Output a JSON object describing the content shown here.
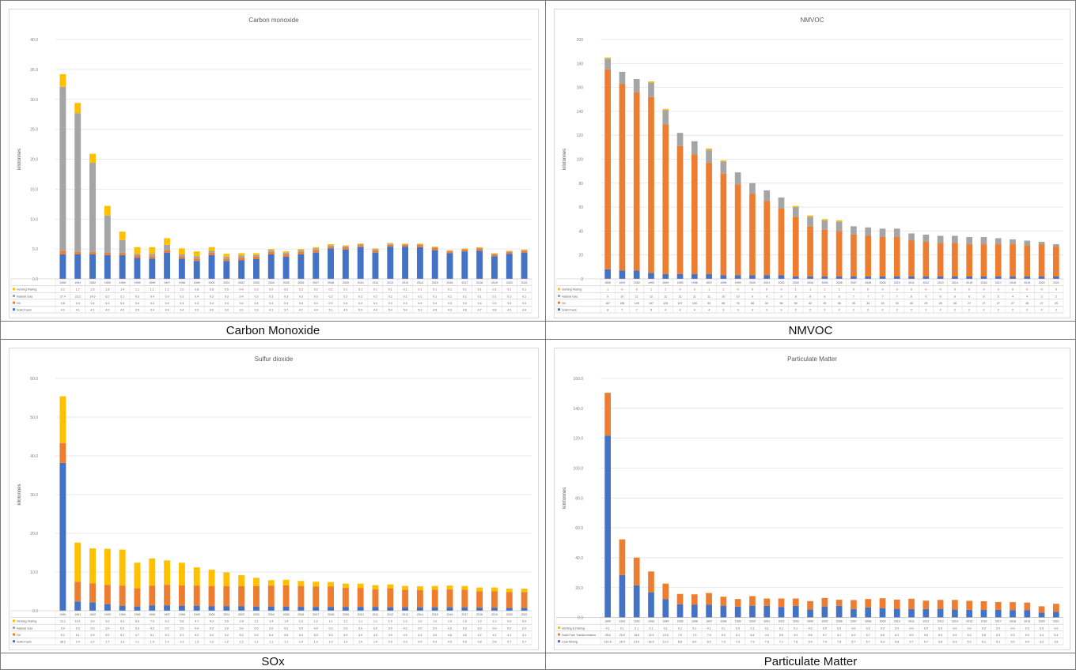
{
  "captions": [
    "Carbon Monoxide",
    "NMVOC",
    "SOx",
    "Particulate Matter"
  ],
  "colors": {
    "blue": "#4472c4",
    "orange": "#ed7d31",
    "gray": "#a5a5a5",
    "yellow": "#ffc000"
  },
  "chart_data": [
    {
      "type": "bar",
      "stacked": true,
      "title": "Carbon monoxide",
      "ylabel": "kilotonnes",
      "ylim": [
        0,
        40
      ],
      "yticks": [
        "0.0",
        "5.0",
        "10.0",
        "15.0",
        "20.0",
        "25.0",
        "30.0",
        "35.0",
        "40.0"
      ],
      "categories": [
        "1990",
        "1991",
        "1992",
        "1993",
        "1994",
        "1995",
        "1996",
        "1997",
        "1998",
        "1999",
        "2000",
        "2001",
        "2002",
        "2003",
        "2004",
        "2005",
        "2006",
        "2007",
        "2008",
        "2009",
        "2010",
        "2011",
        "2012",
        "2013",
        "2014",
        "2015",
        "2016",
        "2017",
        "2018",
        "2019",
        "2020",
        "2021"
      ],
      "series": [
        {
          "name": "Solid Fuels",
          "color": "#4472c4",
          "values": [
            4.1,
            4.1,
            4.1,
            4.0,
            4.0,
            3.5,
            3.4,
            4.4,
            3.4,
            3.0,
            4.0,
            3.0,
            3.1,
            3.3,
            4.1,
            3.7,
            4.1,
            4.4,
            5.1,
            4.9,
            5.3,
            4.4,
            5.4,
            5.4,
            5.3,
            4.8,
            4.3,
            4.6,
            4.7,
            3.8,
            4.2,
            4.4
          ]
        },
        {
          "name": "Oil",
          "color": "#ed7d31",
          "values": [
            0.6,
            0.4,
            0.4,
            0.4,
            0.4,
            0.4,
            0.4,
            0.4,
            0.4,
            0.4,
            0.4,
            0.4,
            0.4,
            0.4,
            0.4,
            0.4,
            0.4,
            0.4,
            0.3,
            0.4,
            0.3,
            0.4,
            0.3,
            0.3,
            0.4,
            0.4,
            0.3,
            0.3,
            0.4,
            0.3,
            0.3,
            0.3
          ]
        },
        {
          "name": "Natural Gas",
          "color": "#a5a5a5",
          "values": [
            27.4,
            23.2,
            14.9,
            6.2,
            2.1,
            0.3,
            0.4,
            0.9,
            0.3,
            0.4,
            0.3,
            0.3,
            0.4,
            0.3,
            0.3,
            0.3,
            0.3,
            0.3,
            0.2,
            0.2,
            0.2,
            0.2,
            0.2,
            0.1,
            0.1,
            0.1,
            0.1,
            0.1,
            0.1,
            0.1,
            0.1,
            0.1
          ]
        },
        {
          "name": "Venting Flaring",
          "color": "#ffc000",
          "values": [
            2.1,
            1.7,
            1.5,
            1.6,
            1.4,
            1.1,
            1.1,
            1.1,
            1.0,
            0.8,
            0.6,
            0.5,
            0.4,
            0.3,
            0.2,
            0.2,
            0.2,
            0.2,
            0.2,
            0.1,
            0.1,
            0.1,
            0.1,
            0.1,
            0.1,
            0.1,
            0.1,
            0.1,
            0.1,
            0.1,
            0.1,
            0.1
          ]
        }
      ]
    },
    {
      "type": "bar",
      "stacked": true,
      "title": "NMVOC",
      "ylabel": "kilotonnes",
      "ylim": [
        0,
        200
      ],
      "yticks": [
        "0",
        "20",
        "40",
        "60",
        "80",
        "100",
        "120",
        "140",
        "160",
        "180",
        "200"
      ],
      "categories": [
        "1990",
        "1991",
        "1992",
        "1993",
        "1994",
        "1995",
        "1996",
        "1997",
        "1998",
        "1999",
        "2000",
        "2001",
        "2002",
        "2003",
        "2004",
        "2005",
        "2006",
        "2007",
        "2008",
        "2009",
        "2010",
        "2011",
        "2012",
        "2013",
        "2014",
        "2015",
        "2016",
        "2017",
        "2018",
        "2019",
        "2020",
        "2021"
      ],
      "series": [
        {
          "name": "Solid Fuels",
          "color": "#4472c4",
          "values": [
            8,
            7,
            7,
            5,
            4,
            4,
            4,
            4,
            3,
            3,
            3,
            3,
            3,
            2,
            2,
            2,
            2,
            2,
            2,
            2,
            2,
            2,
            2,
            2,
            2,
            2,
            2,
            2,
            2,
            2,
            2,
            2
          ]
        },
        {
          "name": "Oil",
          "color": "#ed7d31",
          "values": [
            167,
            156,
            149,
            147,
            125,
            107,
            100,
            93,
            85,
            76,
            68,
            62,
            56,
            50,
            42,
            39,
            38,
            35,
            34,
            33,
            33,
            30,
            29,
            28,
            28,
            27,
            27,
            27,
            27,
            26,
            27,
            25
          ]
        },
        {
          "name": "Natural Gas",
          "color": "#a5a5a5",
          "values": [
            9,
            10,
            11,
            12,
            12,
            11,
            11,
            11,
            10,
            10,
            9,
            9,
            9,
            8,
            8,
            8,
            8,
            7,
            7,
            7,
            7,
            6,
            6,
            6,
            6,
            6,
            6,
            5,
            4,
            4,
            2,
            2
          ]
        },
        {
          "name": "Venting Flaring",
          "color": "#ffc000",
          "values": [
            1,
            0,
            0,
            1,
            1,
            0,
            0,
            1,
            1,
            0,
            0,
            0,
            0,
            1,
            1,
            1,
            1,
            0,
            0,
            0,
            0,
            0,
            0,
            0,
            0,
            0,
            0,
            0,
            0,
            0,
            0,
            0
          ]
        }
      ]
    },
    {
      "type": "bar",
      "stacked": true,
      "title": "Sulfur dioxide",
      "ylabel": "kilotonnes",
      "ylim": [
        0,
        60
      ],
      "yticks": [
        "0.0",
        "10.0",
        "20.0",
        "30.0",
        "40.0",
        "50.0",
        "60.0"
      ],
      "categories": [
        "1990",
        "1991",
        "1992",
        "1993",
        "1994",
        "1995",
        "1996",
        "1997",
        "1998",
        "1999",
        "2000",
        "2001",
        "2002",
        "2003",
        "2004",
        "2005",
        "2006",
        "2007",
        "2008",
        "2009",
        "2010",
        "2011",
        "2012",
        "2013",
        "2014",
        "2015",
        "2016",
        "2017",
        "2018",
        "2019",
        "2020",
        "2021"
      ],
      "series": [
        {
          "name": "Solid Fuels",
          "color": "#4472c4",
          "values": [
            38.2,
            2.4,
            2.2,
            1.7,
            1.3,
            1.1,
            1.4,
            1.4,
            1.3,
            1.3,
            1.2,
            1.2,
            1.2,
            1.1,
            1.1,
            1.1,
            1.0,
            1.0,
            1.0,
            1.0,
            1.0,
            1.0,
            0.9,
            0.9,
            0.9,
            0.9,
            0.9,
            0.9,
            0.8,
            0.8,
            0.7,
            0.7
          ]
        },
        {
          "name": "Oil",
          "color": "#ed7d31",
          "values": [
            5.1,
            5.1,
            4.9,
            5.0,
            5.2,
            4.7,
            5.1,
            5.3,
            5.3,
            5.2,
            5.2,
            5.2,
            5.2,
            5.3,
            5.4,
            5.5,
            5.4,
            5.3,
            5.3,
            4.9,
            4.9,
            4.5,
            4.9,
            4.5,
            4.4,
            4.5,
            4.6,
            4.5,
            4.2,
            4.2,
            4.1,
            4.1
          ]
        },
        {
          "name": "Natural Gas",
          "color": "#a5a5a5",
          "values": [
            0.0,
            0.0,
            0.0,
            0.0,
            0.0,
            0.0,
            0.0,
            0.0,
            0.0,
            0.0,
            0.0,
            0.0,
            0.0,
            0.0,
            0.0,
            0.0,
            0.0,
            0.0,
            0.0,
            0.0,
            0.0,
            0.0,
            0.0,
            0.0,
            0.0,
            0.0,
            0.0,
            0.0,
            0.0,
            0.0,
            0.0,
            0.0
          ]
        },
        {
          "name": "Venting Flaring",
          "color": "#ffc000",
          "values": [
            12.1,
            10.1,
            9.0,
            9.3,
            9.3,
            6.6,
            7.0,
            6.3,
            5.8,
            4.7,
            4.2,
            3.5,
            2.8,
            2.1,
            1.4,
            1.4,
            1.3,
            1.2,
            1.1,
            1.1,
            1.1,
            1.1,
            1.0,
            1.0,
            1.0,
            1.0,
            1.0,
            1.0,
            1.0,
            1.0,
            0.9,
            0.9
          ]
        }
      ]
    },
    {
      "type": "bar",
      "stacked": true,
      "title": "Particulate Matter",
      "ylabel": "kilotonnes",
      "ylim": [
        0,
        160
      ],
      "yticks": [
        "0.0",
        "20.0",
        "40.0",
        "60.0",
        "80.0",
        "100.0",
        "120.0",
        "140.0",
        "160.0"
      ],
      "categories": [
        "1990",
        "1991",
        "1992",
        "1993",
        "1994",
        "1995",
        "1996",
        "1997",
        "1998",
        "1999",
        "2000",
        "2001",
        "2002",
        "2003",
        "2004",
        "2005",
        "2006",
        "2007",
        "2008",
        "2009",
        "2010",
        "2011",
        "2012",
        "2013",
        "2014",
        "2015",
        "2016",
        "2017",
        "2018",
        "2019",
        "2020",
        "2021"
      ],
      "series": [
        {
          "name": "Coal Mining",
          "color": "#4472c4",
          "values": [
            121.8,
            28.4,
            21.5,
            16.9,
            12.2,
            8.8,
            8.5,
            8.5,
            7.9,
            7.3,
            7.9,
            7.8,
            7.1,
            7.8,
            5.4,
            7.4,
            7.8,
            5.7,
            6.7,
            6.3,
            5.8,
            5.7,
            5.7,
            5.8,
            5.3,
            5.2,
            5.1,
            5.1,
            5.0,
            5.0,
            3.2,
            3.8
          ]
        },
        {
          "name": "Solid Fuel Transformation",
          "color": "#ed7d31",
          "values": [
            28.6,
            23.9,
            18.6,
            13.9,
            10.5,
            7.0,
            7.0,
            7.9,
            6.0,
            5.1,
            6.4,
            4.9,
            5.6,
            4.9,
            5.6,
            5.7,
            4.1,
            6.0,
            5.7,
            6.6,
            6.2,
            6.9,
            5.6,
            6.0,
            6.5,
            6.0,
            5.8,
            5.3,
            5.3,
            5.0,
            4.3,
            5.4
          ]
        },
        {
          "name": "Venting & Flaring",
          "color": "#ffc000",
          "values": [
            0.1,
            0.1,
            0.1,
            0.1,
            0.1,
            0.1,
            0.1,
            0.1,
            0.1,
            0.0,
            0.1,
            0.1,
            0.1,
            0.1,
            0.0,
            0.0,
            0.0,
            0.0,
            0.0,
            0.0,
            0.0,
            0.0,
            0.0,
            0.0,
            0.0,
            0.0,
            0.0,
            0.0,
            0.0,
            0.0,
            0.0,
            0.0
          ]
        }
      ]
    }
  ]
}
